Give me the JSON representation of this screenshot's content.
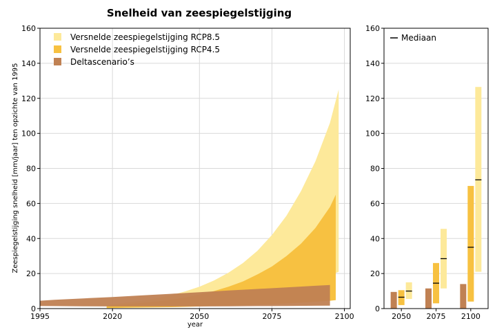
{
  "title": "Snelheid van zeespiegelstijging",
  "colors": {
    "rcp85": "#fde99a",
    "rcp45": "#f7c141",
    "delta": "#c08153",
    "delta_overlap": "#b8692c",
    "grid": "#d9d9d9",
    "axis": "#000000",
    "median": "#000000"
  },
  "chart_data": [
    {
      "type": "area",
      "xlabel": "year",
      "ylabel": "Zeespiegelstijging  snelheid [mm/jaar] ten opzichte van 1995",
      "xlim": [
        1995,
        2102
      ],
      "ylim": [
        0,
        160
      ],
      "xticks": [
        1995,
        2020,
        2050,
        2075,
        2100
      ],
      "yticks": [
        0,
        20,
        40,
        60,
        80,
        100,
        120,
        140,
        160
      ],
      "grid": true,
      "legend_position": "top-left",
      "series": [
        {
          "name": "Versnelde zeespiegelstijging RCP8.5",
          "color_key": "rcp85",
          "x": [
            2018,
            2025,
            2030,
            2035,
            2040,
            2045,
            2050,
            2055,
            2060,
            2065,
            2070,
            2075,
            2080,
            2085,
            2090,
            2095,
            2098
          ],
          "lower": [
            0.5,
            0.8,
            1.0,
            1.3,
            1.6,
            2.0,
            2.6,
            3.2,
            4.0,
            5.0,
            6.3,
            8.0,
            10,
            12.5,
            15.5,
            19,
            21
          ],
          "upper": [
            2.0,
            3.5,
            4.5,
            5.8,
            7.5,
            9.8,
            12.5,
            16,
            20.5,
            26,
            33,
            42,
            53,
            67,
            84,
            106,
            125
          ]
        },
        {
          "name": "Versnelde zeespiegelstijging RCP4.5",
          "color_key": "rcp45",
          "x": [
            2018,
            2025,
            2030,
            2035,
            2040,
            2045,
            2050,
            2055,
            2060,
            2065,
            2070,
            2075,
            2080,
            2085,
            2090,
            2095,
            2097
          ],
          "lower": [
            0.3,
            0.5,
            0.6,
            0.7,
            0.8,
            1.0,
            1.2,
            1.4,
            1.6,
            1.9,
            2.2,
            2.5,
            2.9,
            3.4,
            3.9,
            4.5,
            4.8
          ],
          "upper": [
            1.5,
            2.5,
            3.2,
            4.0,
            5.0,
            6.3,
            8.0,
            10,
            12.5,
            15.5,
            19.5,
            24,
            30,
            37,
            46,
            58,
            65
          ]
        },
        {
          "name": "Deltascenario’s",
          "color_key": "delta",
          "x": [
            1995,
            2000,
            2010,
            2020,
            2030,
            2040,
            2050,
            2060,
            2070,
            2080,
            2090,
            2095
          ],
          "lower": [
            1.5,
            1.4,
            1.3,
            1.2,
            1.2,
            1.2,
            1.2,
            1.3,
            1.4,
            1.5,
            1.6,
            1.7
          ],
          "upper": [
            4.5,
            5.0,
            5.8,
            6.6,
            7.5,
            8.4,
            9.3,
            10.3,
            11.2,
            12.1,
            13.0,
            13.5
          ]
        }
      ]
    },
    {
      "type": "bar",
      "categories": [
        "2050",
        "2075",
        "2100"
      ],
      "ylim": [
        0,
        160
      ],
      "yticks": [
        0,
        20,
        40,
        60,
        80,
        100,
        120,
        140,
        160
      ],
      "grid": true,
      "legend_position": "top-left",
      "median_label": "Mediaan",
      "series": [
        {
          "name": "Deltascenario’s",
          "color_key": "delta",
          "ranges": [
            [
              0,
              9.5
            ],
            [
              0,
              11.5
            ],
            [
              0,
              14
            ]
          ],
          "median": [
            null,
            null,
            null
          ]
        },
        {
          "name": "Versnelde zeespiegelstijging RCP4.5",
          "color_key": "rcp45",
          "ranges": [
            [
              2,
              10.5
            ],
            [
              3,
              26
            ],
            [
              4,
              70
            ]
          ],
          "median": [
            6.5,
            14.5,
            35
          ]
        },
        {
          "name": "Versnelde zeespiegelstijging RCP8.5",
          "color_key": "rcp85",
          "ranges": [
            [
              5.5,
              15
            ],
            [
              11.5,
              45.5
            ],
            [
              21,
              126.5
            ]
          ],
          "median": [
            10,
            28.5,
            73.5
          ]
        }
      ]
    }
  ]
}
